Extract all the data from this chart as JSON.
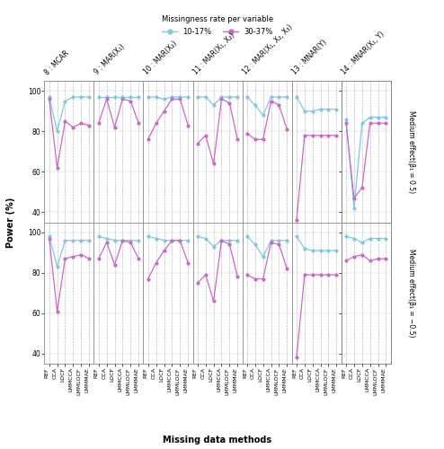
{
  "legend_title": "Missingness rate per variable",
  "legend_labels": [
    "10-17%",
    "30-37%"
  ],
  "column_labels": [
    "8 : MCAR",
    "9 : MAR(X₁)",
    "10 : MAR(X₂)",
    "11 : MAR(X₁, X₂)",
    "12 : MAR(X₁, X₂, X₃)",
    "13 : MNAR(Y)",
    "14 : MNAR(X₁, Y)"
  ],
  "row_labels": [
    "Medium effect(β₁ = 0.5)",
    "Medium effect(β₁ = −0.5)"
  ],
  "xlabel": "Missing data methods",
  "ylabel": "Power (%)",
  "x_tick_labels": [
    "REF",
    "CCA",
    "LOCF",
    "LMMCCA",
    "LMMLOCF",
    "LMMMAE"
  ],
  "ylim": [
    35,
    105
  ],
  "yticks": [
    40,
    60,
    80,
    100
  ],
  "color_high": "#7ec8e3",
  "color_low": "#cc66cc",
  "data": {
    "row0": {
      "col0": {
        "high": [
          97,
          80,
          95,
          97,
          97,
          97
        ],
        "low": [
          96,
          62,
          85,
          82,
          84,
          83
        ]
      },
      "col1": {
        "high": [
          97,
          97,
          97,
          97,
          97,
          97
        ],
        "low": [
          84,
          96,
          82,
          96,
          95,
          84
        ]
      },
      "col2": {
        "high": [
          97,
          97,
          96,
          97,
          97,
          97
        ],
        "low": [
          76,
          84,
          90,
          96,
          96,
          83
        ]
      },
      "col3": {
        "high": [
          97,
          97,
          93,
          97,
          97,
          97
        ],
        "low": [
          74,
          78,
          64,
          96,
          94,
          76
        ]
      },
      "col4": {
        "high": [
          97,
          93,
          88,
          97,
          97,
          97
        ],
        "low": [
          79,
          76,
          76,
          95,
          93,
          81
        ]
      },
      "col5": {
        "high": [
          97,
          90,
          90,
          91,
          91,
          91
        ],
        "low": [
          36,
          78,
          78,
          78,
          78,
          78
        ]
      },
      "col6": {
        "high": [
          86,
          42,
          84,
          87,
          87,
          87
        ],
        "low": [
          84,
          47,
          52,
          84,
          84,
          84
        ]
      }
    },
    "row1": {
      "col0": {
        "high": [
          98,
          83,
          96,
          96,
          96,
          96
        ],
        "low": [
          97,
          61,
          87,
          88,
          89,
          87
        ]
      },
      "col1": {
        "high": [
          98,
          97,
          96,
          96,
          96,
          96
        ],
        "low": [
          87,
          95,
          84,
          96,
          95,
          87
        ]
      },
      "col2": {
        "high": [
          98,
          97,
          96,
          96,
          96,
          96
        ],
        "low": [
          77,
          85,
          91,
          96,
          96,
          85
        ]
      },
      "col3": {
        "high": [
          98,
          97,
          93,
          96,
          96,
          96
        ],
        "low": [
          75,
          79,
          66,
          96,
          94,
          78
        ]
      },
      "col4": {
        "high": [
          98,
          94,
          88,
          96,
          96,
          96
        ],
        "low": [
          79,
          77,
          77,
          95,
          94,
          82
        ]
      },
      "col5": {
        "high": [
          98,
          92,
          91,
          91,
          91,
          91
        ],
        "low": [
          38,
          79,
          79,
          79,
          79,
          79
        ]
      },
      "col6": {
        "high": [
          98,
          97,
          95,
          97,
          97,
          97
        ],
        "low": [
          86,
          88,
          89,
          86,
          87,
          87
        ]
      }
    }
  },
  "n_cols": 7,
  "n_rows": 2
}
